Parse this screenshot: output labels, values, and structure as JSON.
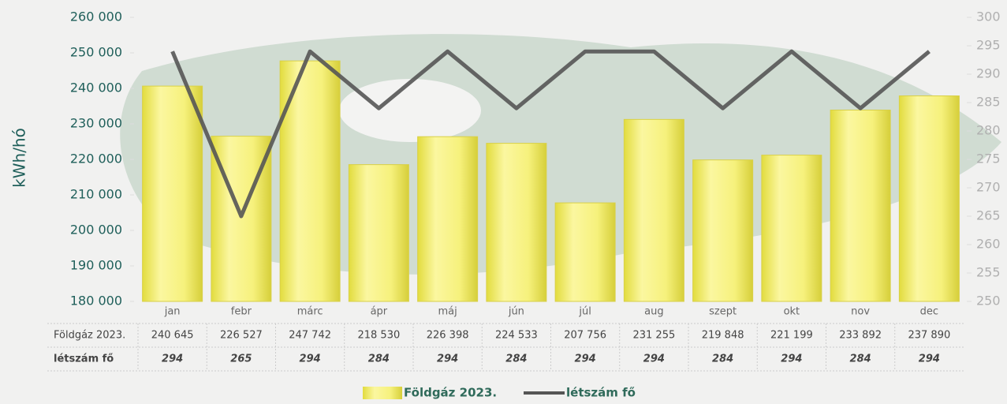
{
  "chart_data": {
    "type": "bar",
    "y_label": "kWh/hó",
    "categories": [
      "jan",
      "febr",
      "márc",
      "ápr",
      "máj",
      "jún",
      "júl",
      "aug",
      "szept",
      "okt",
      "nov",
      "dec"
    ],
    "series": [
      {
        "name": "Földgáz 2023.",
        "color": "#f2ec6a",
        "values": [
          240645,
          226527,
          247742,
          218530,
          226398,
          224533,
          207756,
          231255,
          219848,
          221199,
          233892,
          237890
        ],
        "value_labels": [
          "240 645",
          "226 527",
          "247 742",
          "218 530",
          "226 398",
          "224 533",
          "207 756",
          "231 255",
          "219 848",
          "221 199",
          "233 892",
          "237 890"
        ]
      },
      {
        "name": "létszám fő",
        "color": "#555555",
        "type": "line",
        "axis": "y2",
        "values": [
          294,
          265,
          294,
          284,
          294,
          284,
          294,
          294,
          284,
          294,
          284,
          294
        ]
      }
    ],
    "ylim": [
      180000,
      260000
    ],
    "yticks": [
      {
        "value": 180000,
        "label": "180 000"
      },
      {
        "value": 190000,
        "label": "190 000"
      },
      {
        "value": 200000,
        "label": "200 000"
      },
      {
        "value": 210000,
        "label": "210 000"
      },
      {
        "value": 220000,
        "label": "220 000"
      },
      {
        "value": 230000,
        "label": "230 000"
      },
      {
        "value": 240000,
        "label": "240 000"
      },
      {
        "value": 250000,
        "label": "250 000"
      },
      {
        "value": 260000,
        "label": "260 000"
      }
    ],
    "y2lim": [
      250,
      300
    ],
    "y2ticks": [
      250,
      255,
      260,
      265,
      270,
      275,
      280,
      285,
      290,
      295,
      300
    ]
  }
}
